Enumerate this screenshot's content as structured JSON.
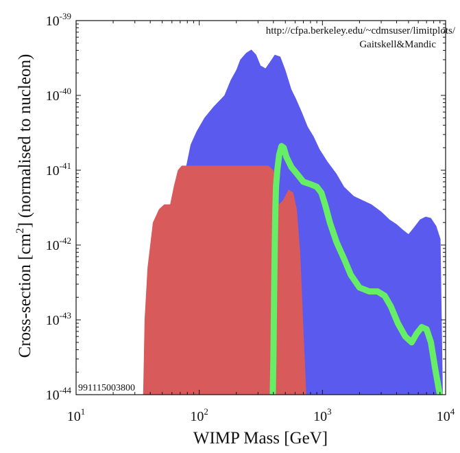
{
  "chart_data": {
    "type": "area",
    "title": "",
    "xlabel": "WIMP Mass [GeV]",
    "ylabel_parts": [
      "Cross-section [cm",
      "2",
      "] (normalised to nucleon)"
    ],
    "xscale": "log",
    "yscale": "log",
    "xlim": [
      10,
      10000
    ],
    "ylim": [
      1e-44,
      1e-39
    ],
    "x_ticks": [
      {
        "base": "10",
        "exp": "1",
        "value": 10
      },
      {
        "base": "10",
        "exp": "2",
        "value": 100
      },
      {
        "base": "10",
        "exp": "3",
        "value": 1000
      },
      {
        "base": "10",
        "exp": "4",
        "value": 10000
      }
    ],
    "y_ticks": [
      {
        "base": "10",
        "exp": "-44",
        "value": 1e-44
      },
      {
        "base": "10",
        "exp": "-43",
        "value": 1e-43
      },
      {
        "base": "10",
        "exp": "-42",
        "value": 1e-42
      },
      {
        "base": "10",
        "exp": "-41",
        "value": 1e-41
      },
      {
        "base": "10",
        "exp": "-40",
        "value": 1e-40
      },
      {
        "base": "10",
        "exp": "-39",
        "value": 1e-39
      }
    ],
    "annotations": {
      "url": "http://cfpa.berkeley.edu/~cdmsuser/limitplots/",
      "authors": "Gaitskell&Mandic",
      "plot_id": "991115003800"
    },
    "series": [
      {
        "name": "blue region",
        "kind": "filled-region",
        "color": "#5a5aee",
        "boundary": [
          [
            75,
            1e-44
          ],
          [
            75,
            6e-42
          ],
          [
            78,
            1.1e-41
          ],
          [
            85,
            2.2e-41
          ],
          [
            95,
            3.3e-41
          ],
          [
            110,
            5e-41
          ],
          [
            130,
            7e-41
          ],
          [
            160,
            1e-40
          ],
          [
            180,
            1.6e-40
          ],
          [
            200,
            2.2e-40
          ],
          [
            215,
            3e-40
          ],
          [
            240,
            3.7e-40
          ],
          [
            265,
            4.1e-40
          ],
          [
            290,
            3.5e-40
          ],
          [
            315,
            2.5e-40
          ],
          [
            345,
            2.3e-40
          ],
          [
            375,
            2.8e-40
          ],
          [
            410,
            3.5e-40
          ],
          [
            455,
            3.3e-40
          ],
          [
            500,
            2.2e-40
          ],
          [
            560,
            1.2e-40
          ],
          [
            610,
            9e-41
          ],
          [
            680,
            6e-41
          ],
          [
            760,
            3.8e-41
          ],
          [
            850,
            2.8e-41
          ],
          [
            950,
            1.9e-41
          ],
          [
            1100,
            1.3e-41
          ],
          [
            1300,
            9e-42
          ],
          [
            1500,
            6e-42
          ],
          [
            1800,
            4.5e-42
          ],
          [
            2100,
            4e-42
          ],
          [
            2500,
            3.5e-42
          ],
          [
            3000,
            2.8e-42
          ],
          [
            3500,
            2.2e-42
          ],
          [
            4000,
            1.9e-42
          ],
          [
            4500,
            1.6e-42
          ],
          [
            5000,
            1.4e-42
          ],
          [
            5500,
            1.7e-42
          ],
          [
            6200,
            2.2e-42
          ],
          [
            6900,
            2.4e-42
          ],
          [
            7600,
            2.3e-42
          ],
          [
            8400,
            1.8e-42
          ],
          [
            9100,
            1.2e-42
          ],
          [
            9500,
            1e-44
          ]
        ]
      },
      {
        "name": "red region",
        "kind": "filled-region",
        "color": "#d85a5a",
        "boundary": [
          [
            35,
            1e-44
          ],
          [
            36,
            1e-43
          ],
          [
            38,
            5e-43
          ],
          [
            42,
            2e-42
          ],
          [
            47,
            3e-42
          ],
          [
            52,
            3.5e-42
          ],
          [
            58,
            3.5e-42
          ],
          [
            62,
            6e-42
          ],
          [
            67,
            1e-41
          ],
          [
            72,
            1.15e-41
          ],
          [
            200,
            1.15e-41
          ],
          [
            365,
            1.15e-41
          ],
          [
            400,
            1e-41
          ],
          [
            445,
            3.5e-42
          ],
          [
            480,
            4e-42
          ],
          [
            530,
            5.5e-42
          ],
          [
            580,
            5e-42
          ],
          [
            620,
            3e-42
          ],
          [
            660,
            8e-43
          ],
          [
            700,
            8e-44
          ],
          [
            740,
            1e-44
          ]
        ]
      },
      {
        "name": "green curve",
        "kind": "line",
        "color": "#66ee66",
        "points": [
          [
            395,
            1e-44
          ],
          [
            400,
            3e-44
          ],
          [
            405,
            2e-43
          ],
          [
            410,
            1e-42
          ],
          [
            415,
            3e-42
          ],
          [
            420,
            6e-42
          ],
          [
            430,
            1e-41
          ],
          [
            445,
            1.6e-41
          ],
          [
            465,
            2.1e-41
          ],
          [
            485,
            2e-41
          ],
          [
            510,
            1.5e-41
          ],
          [
            560,
            1.1e-41
          ],
          [
            620,
            9e-42
          ],
          [
            700,
            7e-42
          ],
          [
            800,
            6.5e-42
          ],
          [
            900,
            6e-42
          ],
          [
            980,
            5e-42
          ],
          [
            1050,
            3.5e-42
          ],
          [
            1150,
            2e-42
          ],
          [
            1300,
            1.1e-42
          ],
          [
            1500,
            6.5e-43
          ],
          [
            1700,
            4e-43
          ],
          [
            2000,
            2.7e-43
          ],
          [
            2400,
            2.4e-43
          ],
          [
            2800,
            2.4e-43
          ],
          [
            3200,
            2.1e-43
          ],
          [
            3600,
            1.5e-43
          ],
          [
            4100,
            9e-44
          ],
          [
            4700,
            6e-44
          ],
          [
            5300,
            5e-44
          ],
          [
            5800,
            6.5e-44
          ],
          [
            6400,
            8e-44
          ],
          [
            7000,
            7.5e-44
          ],
          [
            7600,
            5e-44
          ],
          [
            8200,
            2.3e-44
          ],
          [
            8800,
            1.2e-44
          ],
          [
            9000,
            1e-44
          ]
        ]
      }
    ]
  }
}
